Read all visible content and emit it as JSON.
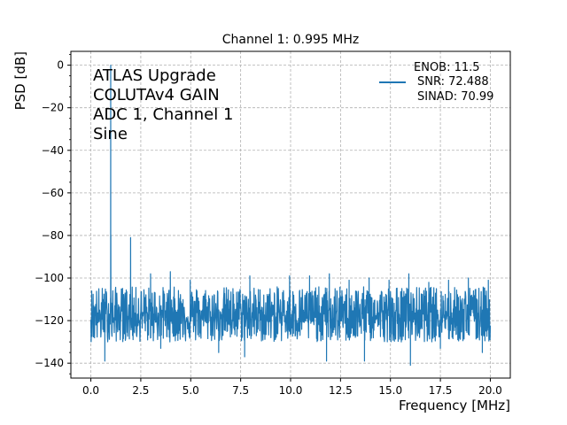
{
  "chart_data": {
    "type": "line",
    "title": "Channel 1: 0.995 MHz",
    "xlabel": "Frequency [MHz]",
    "ylabel": "PSD [dB]",
    "xlim": [
      -1.0,
      21.0
    ],
    "ylim": [
      -147.0,
      6.5
    ],
    "xticks": [
      0.0,
      2.5,
      5.0,
      7.5,
      10.0,
      12.5,
      15.0,
      17.5,
      20.0
    ],
    "xtick_labels": [
      "0.0",
      "2.5",
      "5.0",
      "7.5",
      "10.0",
      "12.5",
      "15.0",
      "17.5",
      "20.0"
    ],
    "yticks": [
      0,
      -20,
      -40,
      -60,
      -80,
      -100,
      -120,
      -140
    ],
    "ytick_labels": [
      "0",
      "−20",
      "−40",
      "−60",
      "−80",
      "−100",
      "−120",
      "−140"
    ],
    "grid": true,
    "grid_style": "dashed",
    "legend_position": "upper-right",
    "legend_lines": [
      "ENOB: 11.5",
      "SNR: 72.488",
      "SINAD: 70.99"
    ],
    "annotation_lines": [
      "ATLAS Upgrade",
      "COLUTAv4 GAIN",
      "ADC 1, Channel 1",
      "Sine"
    ],
    "series_color": "#1f77b4",
    "noise_floor": {
      "x_range": [
        0.0,
        20.0
      ],
      "center_db": -115,
      "upper_db": -103,
      "lower_db": -130
    },
    "spikes": [
      {
        "x": 0.995,
        "y": 0
      },
      {
        "x": 1.0,
        "y": -80
      },
      {
        "x": 1.99,
        "y": -81
      },
      {
        "x": 2.99,
        "y": -98
      },
      {
        "x": 3.98,
        "y": -97
      },
      {
        "x": 4.975,
        "y": -101
      },
      {
        "x": 7.96,
        "y": -99
      },
      {
        "x": 9.95,
        "y": -99
      },
      {
        "x": 10.95,
        "y": -99
      },
      {
        "x": 11.94,
        "y": -98
      },
      {
        "x": 12.93,
        "y": -101
      },
      {
        "x": 13.93,
        "y": -100
      },
      {
        "x": 14.93,
        "y": -101
      },
      {
        "x": 15.92,
        "y": -98
      },
      {
        "x": 16.92,
        "y": -102
      },
      {
        "x": 17.91,
        "y": -101
      },
      {
        "x": 18.9,
        "y": -100
      },
      {
        "x": 19.9,
        "y": -101
      }
    ],
    "dips": [
      {
        "x": 0.7,
        "y": -139
      },
      {
        "x": 3.5,
        "y": -133
      },
      {
        "x": 6.4,
        "y": -135
      },
      {
        "x": 7.7,
        "y": -137
      },
      {
        "x": 11.8,
        "y": -139
      },
      {
        "x": 13.7,
        "y": -139
      },
      {
        "x": 16.0,
        "y": -141
      },
      {
        "x": 17.5,
        "y": -133
      },
      {
        "x": 19.6,
        "y": -135
      }
    ]
  }
}
